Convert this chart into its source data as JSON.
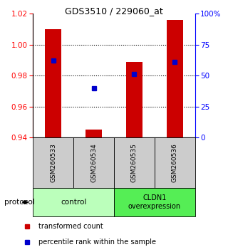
{
  "title": "GDS3510 / 229060_at",
  "samples": [
    "GSM260533",
    "GSM260534",
    "GSM260535",
    "GSM260536"
  ],
  "bar_values": [
    1.01,
    0.945,
    0.989,
    1.016
  ],
  "bar_bottom": 0.94,
  "percentile_values": [
    0.99,
    0.972,
    0.981,
    0.989
  ],
  "bar_color": "#cc0000",
  "dot_color": "#0000cc",
  "ylim_left": [
    0.94,
    1.02
  ],
  "ylim_right": [
    0,
    100
  ],
  "yticks_left": [
    0.94,
    0.96,
    0.98,
    1.0,
    1.02
  ],
  "yticks_right": [
    0,
    25,
    50,
    75,
    100
  ],
  "ytick_labels_right": [
    "0",
    "25",
    "50",
    "75",
    "100%"
  ],
  "gridlines": [
    1.0,
    0.98,
    0.96
  ],
  "bar_color_legend": "#cc0000",
  "dot_color_legend": "#0000cc",
  "legend_labels": [
    "transformed count",
    "percentile rank within the sample"
  ],
  "bar_width": 0.4,
  "control_color": "#aaffaa",
  "cldn1_color": "#55dd55",
  "sample_box_color": "#cccccc",
  "protocol_label": "protocol",
  "control_label": "control",
  "cldn1_label": "CLDN1\noverexpression"
}
